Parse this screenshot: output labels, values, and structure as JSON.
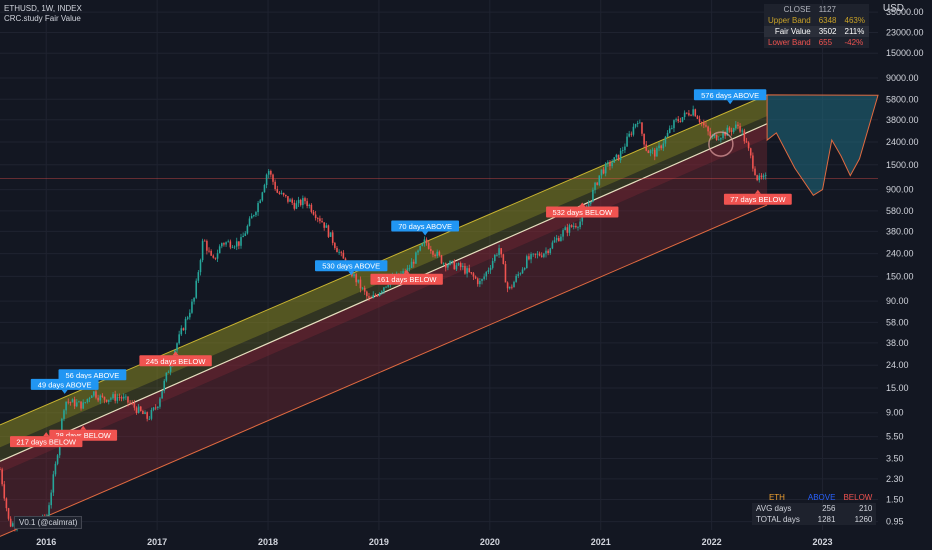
{
  "header": {
    "symbol": "ETHUSD, 1W, INDEX",
    "study": "CRC.study Fair Value"
  },
  "axis_unit": "USD",
  "version_label": "V0.1 (@calmrat)",
  "info_table": [
    {
      "label": "CLOSE",
      "value": "1127",
      "pct": "",
      "color": "#b2b5be"
    },
    {
      "label": "Upper Band",
      "value": "6348",
      "pct": "463%",
      "color": "#c9a227"
    },
    {
      "label": "Fair Value",
      "value": "3502",
      "pct": "211%",
      "color": "#ffffff"
    },
    {
      "label": "Lower Band",
      "value": "655",
      "pct": "-42%",
      "color": "#f05350"
    }
  ],
  "stats_table": {
    "header": [
      "ETH",
      "ABOVE",
      "BELOW"
    ],
    "header_colors": [
      "#f0a030",
      "#2962ff",
      "#f05350"
    ],
    "rows": [
      {
        "label": "AVG days",
        "above": "256",
        "below": "210"
      },
      {
        "label": "TOTAL days",
        "above": "1281",
        "below": "1260"
      }
    ]
  },
  "colors": {
    "background": "#131722",
    "upper_band_fill": "#8a8a22",
    "lower_band_fill": "#8a2a35",
    "fair_value_line": "#e8e0c0",
    "up_candle": "#26a69a",
    "down_candle": "#ef5350",
    "above_label": "#2196f3",
    "below_label": "#f05350",
    "projection_fill": "#1f6b80"
  },
  "chart_data": {
    "type": "candlestick",
    "scale": "log",
    "x_ticks": [
      "2016",
      "2017",
      "2018",
      "2019",
      "2020",
      "2021",
      "2022",
      "2023"
    ],
    "y_ticks": [
      "35000.00",
      "23000.00",
      "15000.00",
      "9000.00",
      "5800.00",
      "3800.00",
      "2400.00",
      "1500.00",
      "900.00",
      "580.00",
      "380.00",
      "240.00",
      "150.00",
      "90.00",
      "58.00",
      "38.00",
      "24.00",
      "15.00",
      "9.00",
      "5.50",
      "3.50",
      "2.30",
      "1.50",
      "0.95"
    ],
    "y_range": [
      0.8,
      45000
    ],
    "x_range": [
      "2015-08",
      "2023-07"
    ],
    "price_path": [
      [
        "2015-08",
        2.8
      ],
      [
        "2015-09",
        0.9
      ],
      [
        "2015-11",
        0.95
      ],
      [
        "2016-01",
        1.0
      ],
      [
        "2016-02",
        3.0
      ],
      [
        "2016-03",
        11.5
      ],
      [
        "2016-05",
        10.5
      ],
      [
        "2016-06",
        14.0
      ],
      [
        "2016-07",
        12.0
      ],
      [
        "2016-09",
        12.5
      ],
      [
        "2016-10",
        11.0
      ],
      [
        "2016-12",
        8.0
      ],
      [
        "2017-01",
        10.5
      ],
      [
        "2017-03",
        35.0
      ],
      [
        "2017-05",
        95.0
      ],
      [
        "2017-06",
        330.0
      ],
      [
        "2017-07",
        200.0
      ],
      [
        "2017-08",
        300.0
      ],
      [
        "2017-10",
        300.0
      ],
      [
        "2017-12",
        700.0
      ],
      [
        "2018-01",
        1380.0
      ],
      [
        "2018-02",
        850.0
      ],
      [
        "2018-04",
        650.0
      ],
      [
        "2018-05",
        720.0
      ],
      [
        "2018-07",
        450.0
      ],
      [
        "2018-09",
        220.0
      ],
      [
        "2018-12",
        90.0
      ],
      [
        "2019-02",
        135.0
      ],
      [
        "2019-04",
        165.0
      ],
      [
        "2019-06",
        310.0
      ],
      [
        "2019-08",
        200.0
      ],
      [
        "2019-10",
        180.0
      ],
      [
        "2019-12",
        130.0
      ],
      [
        "2020-02",
        270.0
      ],
      [
        "2020-03",
        110.0
      ],
      [
        "2020-05",
        210.0
      ],
      [
        "2020-07",
        250.0
      ],
      [
        "2020-09",
        380.0
      ],
      [
        "2020-11",
        480.0
      ],
      [
        "2021-01",
        1300.0
      ],
      [
        "2021-03",
        1800.0
      ],
      [
        "2021-05",
        3900.0
      ],
      [
        "2021-06",
        2000.0
      ],
      [
        "2021-07",
        1900.0
      ],
      [
        "2021-09",
        3600.0
      ],
      [
        "2021-11",
        4700.0
      ],
      [
        "2022-01",
        2600.0
      ],
      [
        "2022-02",
        2800.0
      ],
      [
        "2022-04",
        3400.0
      ],
      [
        "2022-05",
        2000.0
      ],
      [
        "2022-06",
        1100.0
      ],
      [
        "2022-07",
        1127.0
      ]
    ],
    "bands": {
      "fair_value": [
        [
          "2015-08",
          3.3
        ],
        [
          "2022-07",
          3502
        ]
      ],
      "upper_band_outer": [
        [
          "2015-08",
          7.0
        ],
        [
          "2022-07",
          6348
        ]
      ],
      "upper_band_inner": [
        [
          "2015-08",
          4.4
        ],
        [
          "2022-07",
          4100
        ]
      ],
      "lower_band_inner": [
        [
          "2015-08",
          2.6
        ],
        [
          "2022-07",
          2600
        ]
      ],
      "lower_band_outer": [
        [
          "2015-08",
          0.7
        ],
        [
          "2022-07",
          655
        ]
      ]
    },
    "projection": [
      [
        "2022-07",
        2500
      ],
      [
        "2022-08",
        2900
      ],
      [
        "2022-10",
        1400
      ],
      [
        "2022-12",
        800
      ],
      [
        "2023-01",
        900
      ],
      [
        "2023-02",
        2500
      ],
      [
        "2023-03",
        1800
      ],
      [
        "2023-04",
        1200
      ],
      [
        "2023-05",
        1700
      ],
      [
        "2023-07",
        6300
      ]
    ],
    "current_price_line": 1127,
    "annotations": [
      {
        "text": "56 days ABOVE",
        "type": "above",
        "date": "2016-06",
        "price": 19.5
      },
      {
        "text": "49 days ABOVE",
        "type": "above",
        "date": "2016-03",
        "price": 16.0
      },
      {
        "text": "28 days BELOW",
        "type": "below",
        "date": "2016-05",
        "price": 5.6
      },
      {
        "text": "217 days BELOW",
        "type": "below",
        "date": "2016-01",
        "price": 4.9
      },
      {
        "text": "245 days BELOW",
        "type": "below",
        "date": "2017-03",
        "price": 26.0
      },
      {
        "text": "70 days ABOVE",
        "type": "above",
        "date": "2019-06",
        "price": 420.0
      },
      {
        "text": "530 days ABOVE",
        "type": "above",
        "date": "2018-10",
        "price": 185.0
      },
      {
        "text": "161 days BELOW",
        "type": "below",
        "date": "2019-04",
        "price": 140.0
      },
      {
        "text": "532 days BELOW",
        "type": "below",
        "date": "2020-11",
        "price": 560.0
      },
      {
        "text": "576 days ABOVE",
        "type": "above",
        "date": "2022-03",
        "price": 6300.0
      },
      {
        "text": "77 days BELOW",
        "type": "below",
        "date": "2022-06",
        "price": 730.0
      }
    ]
  }
}
